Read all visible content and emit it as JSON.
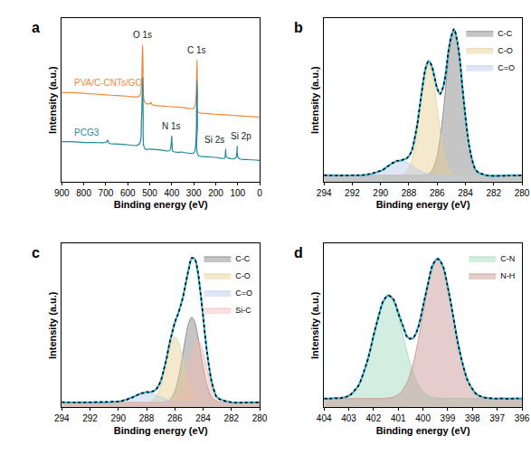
{
  "chart_data": [
    {
      "type": "line",
      "title": "a",
      "x_label": "Binding energy (eV)",
      "y_label": "Intensity (a.u.)",
      "xlim": [
        900,
        0
      ],
      "xticks": [
        900,
        800,
        700,
        600,
        500,
        400,
        300,
        200,
        100,
        0
      ],
      "ylim": [
        0,
        110
      ],
      "grid": false,
      "tick_labels": "x",
      "series": [
        {
          "name": "PVA/C-CNTs/GO",
          "color": "#f0883e",
          "line_style": "solid",
          "x": [
            900,
            850,
            800,
            750,
            700,
            650,
            600,
            560,
            545,
            538,
            534,
            532,
            530,
            527,
            520,
            500,
            495,
            490,
            450,
            400,
            350,
            300,
            290,
            287,
            285,
            283,
            280,
            250,
            200,
            150,
            100,
            50,
            0
          ],
          "values": [
            60,
            60,
            59.5,
            59,
            58.5,
            58,
            57.5,
            57,
            58,
            65,
            84,
            92,
            70,
            56,
            53,
            52.5,
            53.5,
            52,
            51,
            50.5,
            50,
            49.5,
            56,
            70,
            82,
            60,
            47,
            46,
            45.5,
            45,
            44.5,
            44,
            43.5
          ]
        },
        {
          "name": "PCG3",
          "color": "#1f8a9c",
          "line_style": "solid",
          "x": [
            900,
            850,
            800,
            750,
            700,
            690,
            685,
            650,
            600,
            560,
            545,
            538,
            534,
            532,
            530,
            527,
            520,
            500,
            450,
            410,
            403,
            400,
            398,
            395,
            350,
            300,
            290,
            287,
            285,
            283,
            280,
            250,
            200,
            160,
            156,
            154,
            152,
            140,
            110,
            104,
            102,
            100,
            90,
            50,
            0
          ],
          "values": [
            27,
            27,
            26.5,
            26.5,
            26.5,
            28,
            26,
            25.5,
            25,
            24.5,
            26,
            40,
            60,
            70,
            45,
            24,
            22,
            22,
            21.5,
            21,
            25,
            31,
            24,
            20.5,
            20,
            19.5,
            28,
            50,
            68,
            40,
            18,
            17,
            16.5,
            16,
            20,
            22,
            17,
            16,
            16,
            20,
            24,
            17,
            15.5,
            15,
            14.5
          ]
        }
      ],
      "annotations": [
        {
          "text": "O 1s",
          "x": 532,
          "y": 94
        },
        {
          "text": "C 1s",
          "x": 285,
          "y": 84
        },
        {
          "text": "N 1s",
          "x": 400,
          "y": 33
        },
        {
          "text": "Si 2s",
          "x": 205,
          "y": 24
        },
        {
          "text": "Si 2p",
          "x": 85,
          "y": 26
        }
      ]
    },
    {
      "type": "line",
      "title": "b",
      "x_label": "Binding energy (eV)",
      "y_label": "Intensity (a.u.)",
      "xlim": [
        294,
        280
      ],
      "xticks": [
        294,
        292,
        290,
        288,
        286,
        284,
        282,
        280
      ],
      "ylim": [
        0,
        100
      ],
      "grid": false,
      "tick_labels": "x",
      "legend": "top right",
      "x": [
        294,
        293,
        292,
        291,
        290.0,
        289.8,
        289.6,
        289.4,
        289.2,
        289.0,
        288.8,
        288.6,
        288.4,
        288.2,
        288.0,
        287.8,
        287.6,
        287.4,
        287.2,
        287.0,
        286.8,
        286.6,
        286.4,
        286.2,
        286.0,
        285.8,
        285.6,
        285.4,
        285.2,
        285.0,
        284.8,
        284.6,
        284.4,
        284.2,
        284.0,
        283.8,
        283.6,
        283.4,
        283.2,
        282.5,
        281,
        280
      ],
      "series": [
        {
          "name": "C-C",
          "type": "area",
          "color": "#7f7f7f",
          "values": [
            4,
            4,
            4,
            4,
            4,
            4,
            4,
            4,
            4,
            4,
            4,
            4,
            4,
            4,
            4,
            4,
            4,
            4,
            4,
            4,
            4.4,
            5,
            6.5,
            10,
            16,
            26,
            40,
            57,
            75,
            87,
            92,
            87,
            75,
            57,
            40,
            26,
            16,
            10,
            6.5,
            4,
            4,
            4
          ]
        },
        {
          "name": "C-O",
          "type": "area",
          "color": "#e6cf8f",
          "values": [
            4,
            4,
            4,
            4,
            4,
            4,
            4,
            4,
            4,
            4,
            4,
            4,
            4.7,
            6,
            8.5,
            13,
            21,
            32,
            45,
            58.5,
            68,
            72,
            68,
            58.5,
            45,
            32,
            21,
            13,
            8.5,
            6,
            5,
            4,
            4,
            4,
            4,
            4,
            4,
            4,
            4,
            4,
            4,
            4
          ]
        },
        {
          "name": "C=O",
          "type": "area",
          "color": "#b7c9ea",
          "values": [
            4,
            4,
            4,
            4.3,
            6.7,
            7.7,
            8.9,
            10.1,
            11.2,
            12.2,
            12.8,
            13,
            12.8,
            12.2,
            11.2,
            10.1,
            8.9,
            7.7,
            6.7,
            5.9,
            5.2,
            4.8,
            4.5,
            4.3,
            4,
            4,
            4,
            4,
            4,
            4,
            4,
            4,
            4,
            4,
            4,
            4,
            4,
            4,
            4,
            4,
            4,
            4
          ]
        },
        {
          "color": "#3ab7d8",
          "type": "line",
          "line_style": "solid",
          "values": [
            4,
            4,
            4,
            4.3,
            6.7,
            7.7,
            8.9,
            10.1,
            11.2,
            12.2,
            12.8,
            13,
            13.5,
            14.2,
            15.7,
            19.1,
            25.9,
            35.7,
            47.7,
            60.4,
            69.6,
            73.8,
            71,
            64.8,
            57,
            54,
            57,
            66,
            79.5,
            89,
            93,
            87,
            75,
            57,
            40,
            26,
            16,
            10,
            6.5,
            4,
            4,
            4
          ]
        },
        {
          "color": "#000000",
          "type": "line",
          "line_style": "dot",
          "values": [
            4.2,
            3.9,
            4.1,
            4.5,
            6.9,
            7.5,
            9.2,
            10.0,
            11.5,
            12.0,
            13.1,
            12.8,
            13.8,
            14.0,
            16.0,
            18.8,
            26.3,
            35.2,
            48.1,
            60.0,
            70.1,
            73.5,
            71.4,
            64.3,
            57.4,
            53.6,
            57.3,
            65.6,
            79.9,
            88.6,
            93.4,
            86.6,
            75.4,
            56.6,
            40.3,
            25.7,
            16.3,
            9.8,
            6.7,
            4.1,
            3.8,
            4.1
          ]
        }
      ]
    },
    {
      "type": "line",
      "title": "c",
      "x_label": "Binding energy (eV)",
      "y_label": "Intensity (a.u.)",
      "xlim": [
        294,
        280
      ],
      "xticks": [
        294,
        292,
        290,
        288,
        286,
        284,
        282,
        280
      ],
      "ylim": [
        0,
        100
      ],
      "grid": false,
      "tick_labels": "x",
      "legend": "top right",
      "x": [
        294,
        293,
        292,
        291,
        290.0,
        289.8,
        289.6,
        289.4,
        289.2,
        289.0,
        288.8,
        288.6,
        288.4,
        288.2,
        288.0,
        287.8,
        287.6,
        287.4,
        287.2,
        287.0,
        286.8,
        286.6,
        286.4,
        286.2,
        286.0,
        285.8,
        285.6,
        285.4,
        285.2,
        285.0,
        284.8,
        284.6,
        284.4,
        284.2,
        284.0,
        283.8,
        283.6,
        283.4,
        283.2,
        283.0,
        282,
        281,
        280
      ],
      "series": [
        {
          "name": "C-C",
          "type": "area",
          "color": "#7f7f7f",
          "values": [
            3,
            3,
            3,
            3,
            3,
            3,
            3,
            3,
            3,
            3,
            3,
            3,
            3,
            3,
            3,
            3,
            3,
            3,
            3,
            3,
            3.2,
            3.6,
            4.5,
            6.4,
            10,
            15.9,
            24.4,
            34.6,
            44.7,
            52.2,
            55,
            52.2,
            44.7,
            34.6,
            24.4,
            15.9,
            10,
            6.4,
            4.5,
            3.6,
            3,
            3,
            3
          ]
        },
        {
          "name": "C-O",
          "type": "area",
          "color": "#e6cf8f",
          "values": [
            3,
            3,
            3,
            3,
            3,
            3,
            3,
            3,
            3,
            3,
            3,
            3,
            3,
            3,
            3.2,
            3.4,
            4.1,
            5.6,
            8.4,
            13,
            19.4,
            27.3,
            35,
            40.8,
            43,
            40.8,
            35,
            27.3,
            19.4,
            13,
            8.4,
            5.6,
            4.1,
            3.4,
            3.2,
            3,
            3,
            3,
            3,
            3,
            3,
            3,
            3
          ]
        },
        {
          "name": "C=O",
          "type": "area",
          "color": "#b7c9ea",
          "values": [
            3,
            3,
            3,
            3,
            3.5,
            3.8,
            4.2,
            4.8,
            5.5,
            6.2,
            7,
            7.8,
            8.4,
            8.9,
            9,
            8.9,
            8.4,
            7.8,
            7,
            6.2,
            5.5,
            4.8,
            4.2,
            3.8,
            3.5,
            3.3,
            3.2,
            3.1,
            3,
            3,
            3,
            3,
            3,
            3,
            3,
            3,
            3,
            3,
            3,
            3,
            3,
            3,
            3
          ]
        },
        {
          "name": "Si-C",
          "type": "area",
          "color": "#f4b9ae",
          "values": [
            3,
            3,
            3,
            3,
            3,
            3,
            3,
            3,
            3,
            3,
            3,
            3,
            3,
            3,
            3,
            3,
            3,
            3,
            3,
            3,
            3,
            3,
            3.2,
            3.4,
            4.1,
            5.5,
            8.1,
            12.5,
            18.6,
            26.1,
            33.4,
            38.9,
            41,
            38.9,
            33.4,
            26.1,
            18.6,
            12.5,
            8.1,
            5.5,
            3,
            3,
            3
          ]
        },
        {
          "color": "#3ab7d8",
          "type": "line",
          "line_style": "solid",
          "values": [
            3,
            3,
            3,
            3,
            3.5,
            3.8,
            4.2,
            4.8,
            5.5,
            6.2,
            7.0,
            7.8,
            8.4,
            8.9,
            9.2,
            9.3,
            9.5,
            10.4,
            12.4,
            16.2,
            22.1,
            29.7,
            37.9,
            45.4,
            51.6,
            56.5,
            61.7,
            68.5,
            76.7,
            85.3,
            90.8,
            90.7,
            83.8,
            70.9,
            55.0,
            39.0,
            25.6,
            15.9,
            9.6,
            6.1,
            3,
            3,
            3
          ]
        },
        {
          "color": "#000000",
          "type": "line",
          "line_style": "dot",
          "values": [
            3.2,
            2.9,
            3.1,
            3.3,
            3.6,
            3.7,
            4.4,
            4.6,
            5.7,
            6.0,
            7.2,
            7.6,
            8.6,
            8.7,
            9.4,
            9.1,
            9.8,
            10.2,
            12.7,
            16.0,
            22.5,
            29.3,
            38.3,
            45.0,
            52.0,
            56.2,
            62.0,
            68.2,
            77.1,
            85.0,
            91.2,
            90.3,
            84.1,
            70.6,
            55.4,
            38.7,
            25.9,
            15.6,
            9.8,
            5.9,
            3.1,
            2.9,
            3.1
          ]
        }
      ]
    },
    {
      "type": "line",
      "title": "d",
      "x_label": "Binding energy (eV)",
      "y_label": "Intensity (a.u.)",
      "xlim": [
        404,
        396
      ],
      "xticks": [
        404,
        403,
        402,
        401,
        400,
        399,
        398,
        397,
        396
      ],
      "ylim": [
        0,
        75
      ],
      "grid": false,
      "tick_labels": "x",
      "legend": "top right",
      "x": [
        404.0,
        403.8,
        403.6,
        403.4,
        403.2,
        403.0,
        402.8,
        402.6,
        402.4,
        402.2,
        402.0,
        401.8,
        401.6,
        401.4,
        401.2,
        401.0,
        400.8,
        400.6,
        400.4,
        400.2,
        400.0,
        399.8,
        399.6,
        399.4,
        399.2,
        399.0,
        398.8,
        398.6,
        398.4,
        398.2,
        398.0,
        397.8,
        397.6,
        397.4,
        397.2,
        397.0,
        396.8,
        396.6,
        396.4,
        396.2,
        396.0
      ],
      "series": [
        {
          "name": "C-N",
          "type": "area",
          "color": "#9ed9bc",
          "values": [
            4,
            4,
            4.1,
            4.2,
            4.5,
            5.3,
            7.1,
            10.3,
            15.7,
            23.3,
            32.5,
            41.6,
            48.5,
            51,
            48.5,
            41.6,
            32.5,
            23.3,
            15.7,
            10.3,
            7.1,
            5.3,
            4.5,
            4.2,
            4,
            4,
            4,
            4,
            4,
            4,
            4,
            4,
            4,
            4,
            4,
            4,
            4,
            4,
            4,
            4,
            4
          ]
        },
        {
          "name": "N-H",
          "type": "area",
          "color": "#c4918c",
          "values": [
            4,
            4,
            4,
            4,
            4,
            4,
            4,
            4,
            4,
            4,
            4,
            4,
            4,
            4.3,
            4.7,
            5.8,
            8.2,
            12.6,
            19.9,
            30.3,
            42.8,
            55.3,
            64.5,
            68,
            64.5,
            55.3,
            42.8,
            30.3,
            19.9,
            12.6,
            8.2,
            5.8,
            4.7,
            4.3,
            4,
            4,
            4,
            4,
            4,
            4,
            4
          ]
        },
        {
          "color": "#3ab7d8",
          "type": "line",
          "line_style": "solid",
          "values": [
            4,
            4,
            4.1,
            4.2,
            4.5,
            5.3,
            7.1,
            10.3,
            15.7,
            23.3,
            32.5,
            41.6,
            48.5,
            51.3,
            49.2,
            43.4,
            36.7,
            31.9,
            31.6,
            36.6,
            45.9,
            56.6,
            65.0,
            68.2,
            64.5,
            55.3,
            42.8,
            30.3,
            19.9,
            12.6,
            8.2,
            5.8,
            4.7,
            4.3,
            4,
            4,
            4,
            4,
            4,
            4,
            4
          ]
        },
        {
          "color": "#000000",
          "type": "line",
          "line_style": "dot",
          "values": [
            4.1,
            3.9,
            4.3,
            4.0,
            4.7,
            5.1,
            7.4,
            10.0,
            16.1,
            23.0,
            32.9,
            41.2,
            48.9,
            51.0,
            49.6,
            43.0,
            37.1,
            31.5,
            32.0,
            36.2,
            46.3,
            56.2,
            65.4,
            67.8,
            64.9,
            55.0,
            43.2,
            30.0,
            20.2,
            12.3,
            8.4,
            5.6,
            4.9,
            4.1,
            4.2,
            3.9,
            4.1,
            3.9,
            4.0,
            4.1,
            3.9
          ]
        }
      ]
    }
  ]
}
